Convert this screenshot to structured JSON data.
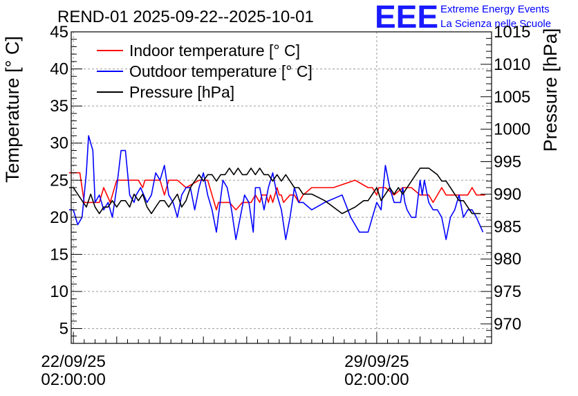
{
  "chart_data": {
    "type": "line",
    "title": "REND-01 2025-09-22--2025-10-01",
    "ylabel": "Temperature [° C]",
    "y2label": "Pressure [hPa]",
    "xlabel": "",
    "ylim": [
      3,
      45
    ],
    "y2lim": [
      967,
      1015
    ],
    "xlim_days": [
      -0.05,
      9.65
    ],
    "yticks": [
      5,
      10,
      15,
      20,
      25,
      30,
      35,
      40,
      45
    ],
    "y2ticks": [
      970,
      975,
      980,
      985,
      990,
      995,
      1000,
      1005,
      1010,
      1015
    ],
    "xticks": [
      {
        "day": 0,
        "label": "22/09/25",
        "sublabel": "02:00:00"
      },
      {
        "day": 7,
        "label": "29/09/25",
        "sublabel": "02:00:00"
      }
    ],
    "grid": true,
    "legend_position": "top-left",
    "series": [
      {
        "name": "Indoor temperature [° C]",
        "axis": "left",
        "color": "#ff0000",
        "x": [
          -0.1,
          0.05,
          0.15,
          0.25,
          0.45,
          0.6,
          0.7,
          0.85,
          1.0,
          1.3,
          1.5,
          1.6,
          1.65,
          1.8,
          2.0,
          2.1,
          2.2,
          2.4,
          2.6,
          2.9,
          3.1,
          3.3,
          3.35,
          3.5,
          3.6,
          3.75,
          3.9,
          4.1,
          4.2,
          4.3,
          4.35,
          4.45,
          4.5,
          4.55,
          4.6,
          4.7,
          4.75,
          4.8,
          4.85,
          5.0,
          5.1,
          5.2,
          5.3,
          5.5,
          6.0,
          6.5,
          6.8,
          6.9,
          7.0,
          7.05,
          7.2,
          7.4,
          7.6,
          7.8,
          8.0,
          8.1,
          8.2,
          8.3,
          8.5,
          8.6,
          8.7,
          8.8,
          9.0,
          9.1,
          9.2,
          9.3,
          9.4,
          9.5
        ],
        "values": [
          26,
          26,
          26,
          22,
          22,
          22,
          24,
          22,
          25,
          25,
          25,
          24,
          25,
          25,
          25,
          23,
          25,
          25,
          24,
          25,
          25,
          21,
          22,
          22,
          22,
          21,
          22,
          22,
          23,
          22,
          23,
          23,
          22,
          23,
          22,
          24,
          23,
          23,
          22,
          23,
          23,
          22,
          23,
          24,
          24,
          25,
          24,
          24,
          23,
          24,
          24,
          23,
          24,
          24,
          23,
          23,
          23,
          22,
          24,
          23,
          23,
          23,
          23,
          23,
          24,
          23,
          23,
          23
        ]
      },
      {
        "name": "Outdoor temperature [° C]",
        "axis": "left",
        "color": "#0000ff",
        "x": [
          -0.1,
          0.0,
          0.1,
          0.2,
          0.3,
          0.35,
          0.45,
          0.5,
          0.6,
          0.7,
          0.8,
          0.9,
          1.0,
          1.1,
          1.2,
          1.3,
          1.4,
          1.45,
          1.55,
          1.7,
          1.8,
          1.9,
          2.0,
          2.1,
          2.2,
          2.3,
          2.4,
          2.5,
          2.6,
          2.7,
          2.8,
          2.9,
          3.0,
          3.1,
          3.2,
          3.3,
          3.45,
          3.55,
          3.65,
          3.75,
          3.85,
          3.95,
          4.05,
          4.15,
          4.2,
          4.3,
          4.4,
          4.5,
          4.6,
          4.7,
          4.8,
          4.9,
          5.0,
          5.1,
          5.2,
          5.3,
          5.5,
          5.8,
          6.2,
          6.4,
          6.6,
          6.8,
          6.9,
          7.0,
          7.1,
          7.2,
          7.3,
          7.4,
          7.55,
          7.6,
          7.65,
          7.7,
          7.8,
          7.9,
          8.0,
          8.05,
          8.1,
          8.2,
          8.3,
          8.4,
          8.5,
          8.6,
          8.7,
          8.8,
          8.9,
          9.0,
          9.1,
          9.2,
          9.3,
          9.45
        ],
        "values": [
          21,
          21,
          19,
          20,
          26,
          31,
          29,
          22,
          23,
          21,
          22,
          20,
          24,
          29,
          29,
          23,
          22,
          23,
          24,
          22,
          23,
          26,
          25,
          27,
          23,
          22,
          20,
          23,
          24,
          24,
          21,
          24,
          26,
          23,
          21,
          18,
          25,
          24,
          21,
          17,
          20,
          23,
          22,
          18,
          24,
          24,
          21,
          24,
          26,
          23,
          21,
          17,
          20,
          24,
          22,
          22,
          21,
          22,
          23,
          20,
          18,
          18,
          20,
          22,
          21,
          27,
          24,
          22,
          22,
          24,
          22,
          21,
          20,
          20,
          25,
          23,
          25,
          22,
          21,
          21,
          20,
          17,
          20,
          21,
          23,
          20,
          21,
          21,
          20,
          18
        ]
      },
      {
        "name": "Pressure [hPa]",
        "axis": "right",
        "color": "#000000",
        "x": [
          -0.1,
          0.0,
          0.1,
          0.2,
          0.3,
          0.4,
          0.5,
          0.6,
          0.7,
          0.8,
          0.9,
          1.0,
          1.1,
          1.2,
          1.3,
          1.4,
          1.5,
          1.6,
          1.7,
          1.8,
          1.9,
          2.0,
          2.1,
          2.2,
          2.3,
          2.4,
          2.5,
          2.6,
          2.7,
          2.8,
          2.9,
          3.0,
          3.1,
          3.2,
          3.3,
          3.4,
          3.5,
          3.6,
          3.7,
          3.8,
          3.9,
          4.0,
          4.1,
          4.2,
          4.3,
          4.4,
          4.5,
          4.6,
          4.7,
          4.8,
          4.9,
          5.0,
          5.1,
          5.2,
          5.3,
          5.4,
          5.5,
          5.8,
          6.2,
          6.5,
          6.7,
          6.8,
          6.9,
          7.0,
          7.1,
          7.2,
          7.3,
          7.4,
          7.5,
          7.6,
          8.0,
          8.2,
          8.4,
          8.5,
          8.6,
          8.7,
          8.8,
          8.9,
          9.0,
          9.1,
          9.2,
          9.3,
          9.4
        ],
        "values": [
          991,
          991,
          990,
          989,
          988,
          990,
          988,
          987,
          988,
          988,
          989,
          988,
          989,
          989,
          988,
          990,
          989,
          990,
          988,
          987,
          988,
          989,
          989,
          988,
          989,
          990,
          988,
          989,
          991,
          992,
          993,
          992,
          993,
          993,
          992,
          993,
          993,
          994,
          993,
          994,
          993,
          993,
          994,
          993,
          994,
          993,
          993,
          992,
          993,
          992,
          993,
          992,
          991,
          991,
          990,
          990,
          990,
          989,
          987,
          988,
          989,
          989,
          990,
          991,
          989,
          990,
          991,
          990,
          991,
          990,
          994,
          994,
          993,
          992,
          992,
          991,
          990,
          989,
          989,
          988,
          987,
          987,
          987
        ]
      }
    ]
  },
  "logo": {
    "mark": "EEE",
    "line1": "Extreme Energy Events",
    "line2": "La Scienza nelle Scuole"
  }
}
